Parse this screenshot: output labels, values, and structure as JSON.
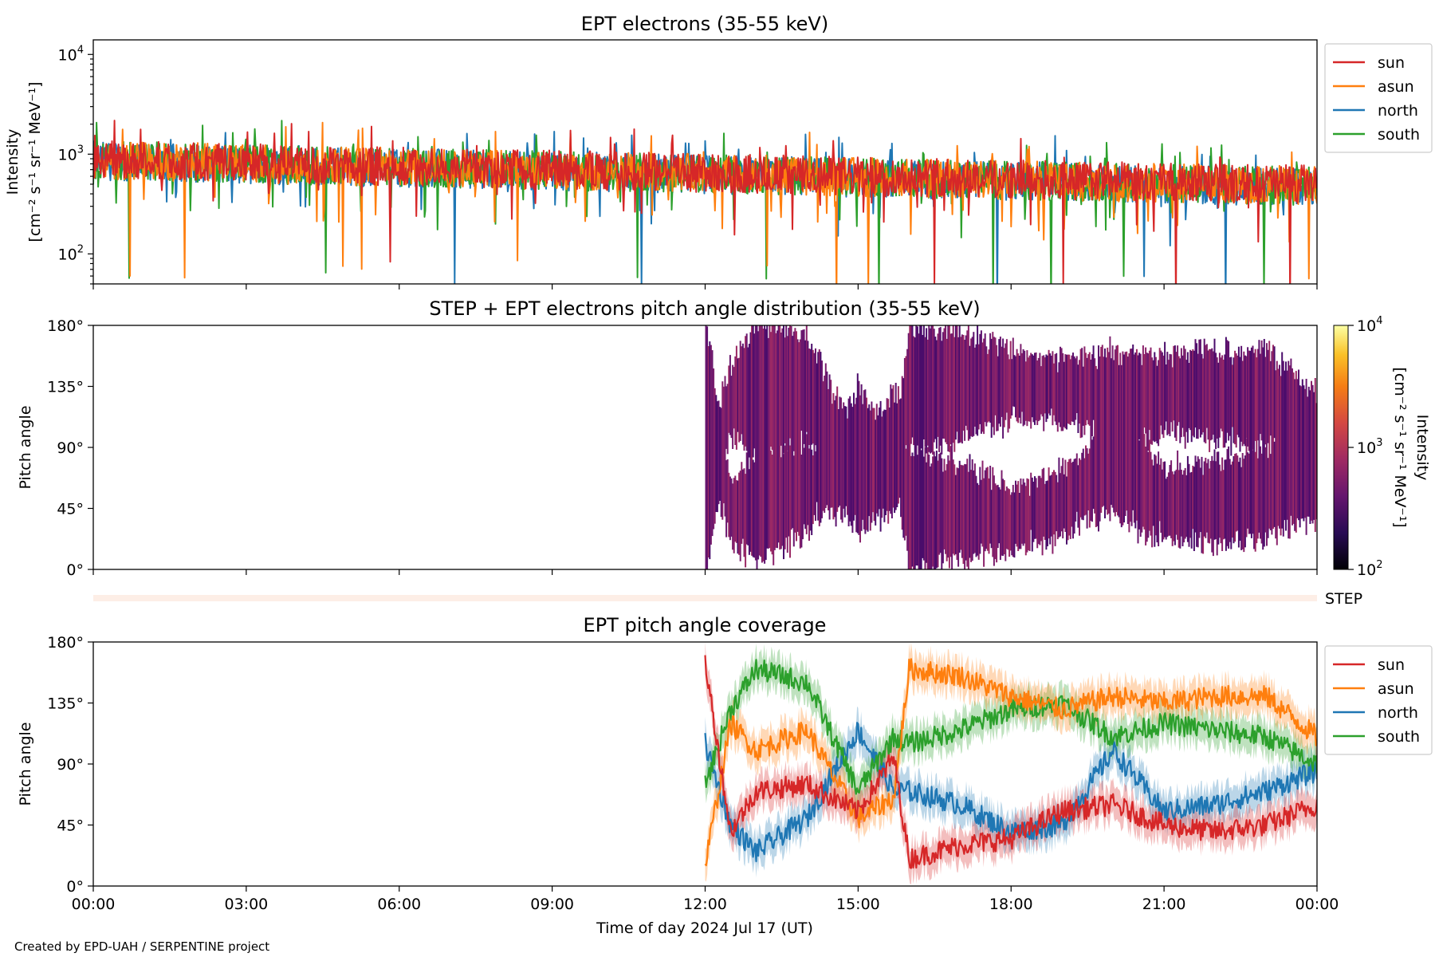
{
  "footer": "Created by EPD-UAH / SERPENTINE project",
  "xaxis": {
    "label": "Time of day 2024 Jul 17 (UT)",
    "ticks": [
      "00:00",
      "03:00",
      "06:00",
      "09:00",
      "12:00",
      "15:00",
      "18:00",
      "21:00",
      "00:00"
    ],
    "range_hours": [
      0,
      24
    ]
  },
  "colors": {
    "sun": "#d62728",
    "asun": "#ff7f0e",
    "north": "#1f77b4",
    "south": "#2ca02c"
  },
  "chart_data": [
    {
      "type": "line",
      "title": "EPT electrons (35-55 keV)",
      "ylabel_line1": "Intensity",
      "ylabel_unit": "[cm⁻² s⁻¹ sr⁻¹ MeV⁻¹]",
      "yscale": "log",
      "ylim": [
        50,
        14000
      ],
      "yticks": [
        {
          "value": 100,
          "base": "10",
          "exp": "2"
        },
        {
          "value": 1000,
          "base": "10",
          "exp": "3"
        },
        {
          "value": 10000,
          "base": "10",
          "exp": "4"
        }
      ],
      "legend": "top-right (outside)",
      "series": [
        {
          "name": "sun",
          "values_hours": [
            0,
            3,
            6,
            9,
            12,
            15,
            18,
            21,
            24
          ],
          "values": [
            900,
            820,
            750,
            700,
            650,
            600,
            560,
            520,
            500
          ]
        },
        {
          "name": "asun",
          "values_hours": [
            0,
            3,
            6,
            9,
            12,
            15,
            18,
            21,
            24
          ],
          "values": [
            880,
            800,
            740,
            690,
            640,
            590,
            550,
            510,
            480
          ]
        },
        {
          "name": "north",
          "values_hours": [
            0,
            3,
            6,
            9,
            12,
            15,
            18,
            21,
            24
          ],
          "values": [
            860,
            790,
            730,
            680,
            630,
            580,
            540,
            500,
            470
          ]
        },
        {
          "name": "south",
          "values_hours": [
            0,
            3,
            6,
            9,
            12,
            15,
            18,
            21,
            24
          ],
          "values": [
            870,
            800,
            735,
            685,
            635,
            585,
            545,
            505,
            475
          ]
        }
      ]
    },
    {
      "type": "heatmap",
      "title": "STEP + EPT electrons pitch angle distribution (35-55 keV)",
      "ylabel": "Pitch angle",
      "ylim": [
        0,
        180
      ],
      "yticks": [
        "0°",
        "45°",
        "90°",
        "135°",
        "180°"
      ],
      "data_start_hour": 12,
      "colorbar": {
        "label": "Intensity",
        "unit": "[cm⁻² s⁻¹ sr⁻¹ MeV⁻¹]",
        "scale": "log",
        "range": [
          100,
          10000
        ],
        "ticks": [
          {
            "value": 100,
            "base": "10",
            "exp": "2"
          },
          {
            "value": 1000,
            "base": "10",
            "exp": "3"
          },
          {
            "value": 10000,
            "base": "10",
            "exp": "4"
          }
        ],
        "colormap": "inferno"
      },
      "step_label": "STEP"
    },
    {
      "type": "line",
      "title": "EPT pitch angle coverage",
      "ylabel": "Pitch angle",
      "ylim": [
        0,
        180
      ],
      "yticks": [
        "0°",
        "45°",
        "90°",
        "135°",
        "180°"
      ],
      "legend": "top-right (outside)",
      "series": [
        {
          "name": "sun",
          "values_hours": [
            12,
            12.5,
            13,
            14,
            15,
            15.7,
            16,
            17,
            18,
            19,
            20,
            21,
            22,
            23,
            24
          ],
          "values": [
            165,
            40,
            70,
            75,
            55,
            95,
            20,
            30,
            35,
            55,
            60,
            45,
            40,
            45,
            60
          ]
        },
        {
          "name": "asun",
          "values_hours": [
            12,
            12.5,
            13,
            14,
            15,
            15.7,
            16,
            17,
            18,
            19,
            20,
            21,
            22,
            23,
            24
          ],
          "values": [
            15,
            120,
            100,
            115,
            50,
            65,
            160,
            155,
            140,
            130,
            140,
            135,
            140,
            140,
            110
          ]
        },
        {
          "name": "north",
          "values_hours": [
            12,
            12.5,
            13,
            14,
            15,
            15.7,
            16,
            17,
            18,
            19,
            20,
            21,
            22,
            23,
            24
          ],
          "values": [
            105,
            45,
            25,
            50,
            115,
            70,
            70,
            60,
            40,
            45,
            100,
            55,
            60,
            70,
            85
          ]
        },
        {
          "name": "south",
          "values_hours": [
            12,
            12.5,
            13,
            14,
            15,
            15.7,
            16,
            17,
            18,
            19,
            20,
            21,
            22,
            23,
            24
          ],
          "values": [
            75,
            130,
            160,
            150,
            70,
            110,
            105,
            115,
            130,
            135,
            110,
            120,
            115,
            110,
            90
          ]
        }
      ]
    }
  ]
}
